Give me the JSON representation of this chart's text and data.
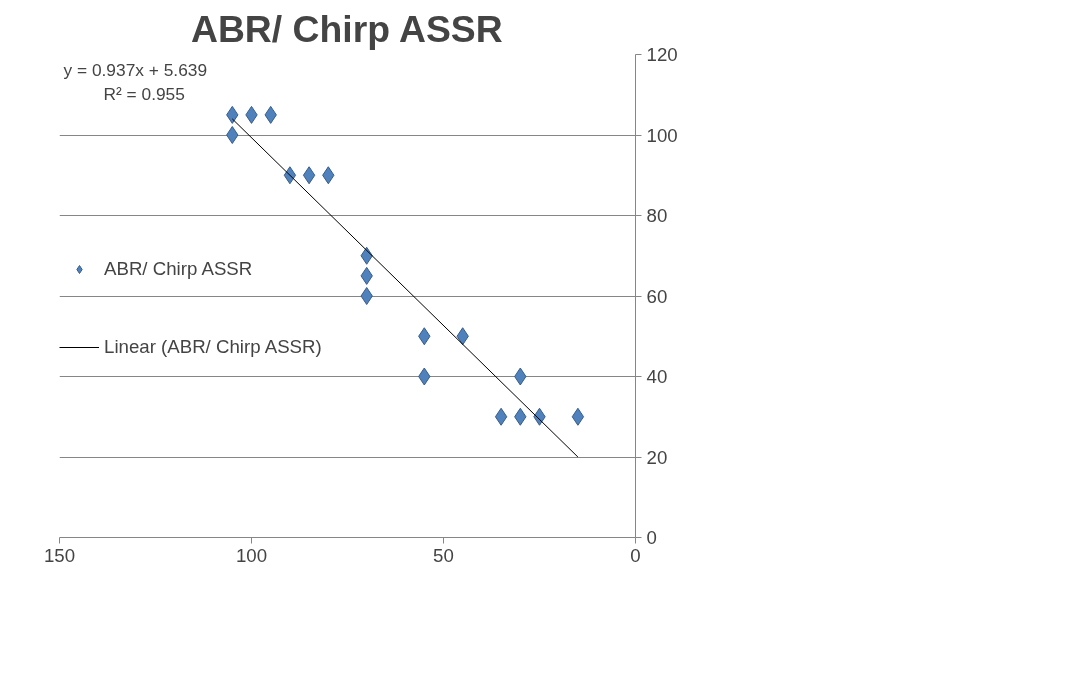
{
  "chart_data": {
    "type": "scatter",
    "title": "ABR/ Chirp ASSR",
    "xlim": [
      150,
      0
    ],
    "xticks": [
      150,
      100,
      50,
      0
    ],
    "ylim": [
      0,
      120
    ],
    "yticks": [
      0,
      20,
      40,
      60,
      80,
      100,
      120
    ],
    "grid": "y",
    "legend": "left",
    "annotations": [
      "y = 0.937x + 5.639",
      "R² = 0.955"
    ],
    "series": [
      {
        "name": "ABR/ Chirp ASSR",
        "marker": "diamond",
        "color": "#4f81bd",
        "x": [
          105,
          105,
          100,
          95,
          90,
          85,
          80,
          70,
          70,
          70,
          55,
          55,
          45,
          35,
          30,
          30,
          25,
          15
        ],
        "values": [
          105,
          100,
          105,
          105,
          90,
          90,
          90,
          70,
          65,
          60,
          50,
          40,
          50,
          30,
          40,
          30,
          30,
          30
        ]
      },
      {
        "name": "Linear (ABR/ Chirp ASSR)",
        "type": "line",
        "color": "#000000",
        "x": [
          105,
          15
        ],
        "values": [
          104,
          20
        ]
      }
    ]
  }
}
